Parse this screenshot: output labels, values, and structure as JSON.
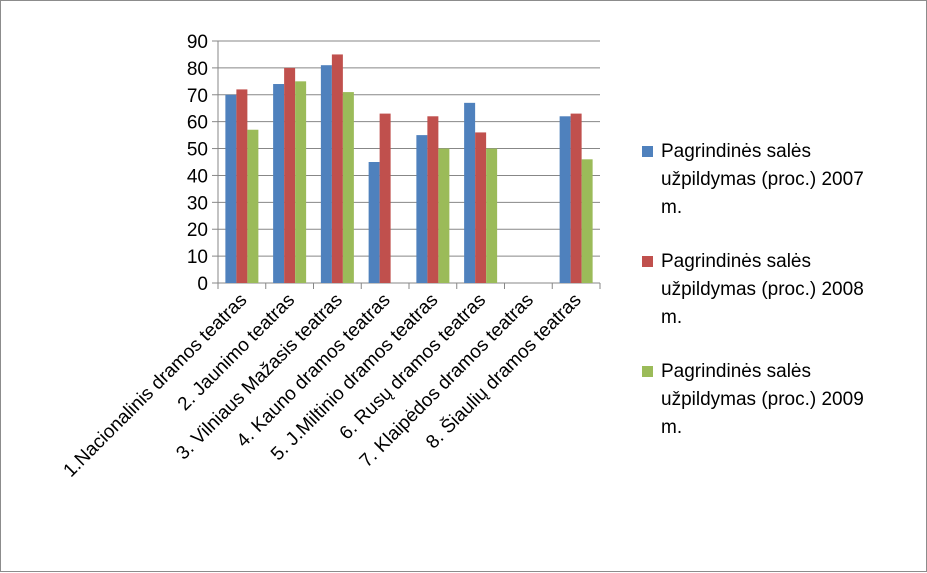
{
  "chart_data": {
    "type": "bar",
    "categories": [
      "1.Nacionalinis dramos teatras",
      "2. Jaunimo teatras",
      "3. Vilniaus Mažasis teatras",
      "4. Kauno dramos teatras",
      "5. J.Miltinio dramos teatras",
      "6. Rusų dramos teatras",
      "7. Klaipėdos dramos teatras",
      "8. Šiaulių dramos teatras"
    ],
    "series": [
      {
        "name": "Pagrindinės salės užpildymas (proc.) 2007 m.",
        "legend_lines": [
          "Pagrindinės salės",
          "užpildymas (proc.) 2007",
          "m."
        ],
        "color": "#4f81bd",
        "values": [
          70,
          74,
          81,
          45,
          55,
          67,
          null,
          62
        ]
      },
      {
        "name": "Pagrindinės salės užpildymas (proc.) 2008 m.",
        "legend_lines": [
          "Pagrindinės salės",
          "užpildymas (proc.) 2008",
          "m."
        ],
        "color": "#c0504d",
        "values": [
          72,
          80,
          85,
          63,
          62,
          56,
          null,
          63
        ]
      },
      {
        "name": "Pagrindinės salės užpildymas (proc.) 2009 m.",
        "legend_lines": [
          "Pagrindinės salės",
          "užpildymas (proc.) 2009",
          "m."
        ],
        "color": "#9bbb59",
        "values": [
          57,
          75,
          71,
          null,
          50,
          50,
          null,
          46
        ]
      }
    ],
    "ylim": [
      0,
      90
    ],
    "yticks": [
      "0",
      "10",
      "20",
      "30",
      "40",
      "50",
      "60",
      "70",
      "80",
      "90"
    ],
    "grid": true,
    "legend_position": "right",
    "title": "",
    "xlabel": "",
    "ylabel": ""
  }
}
